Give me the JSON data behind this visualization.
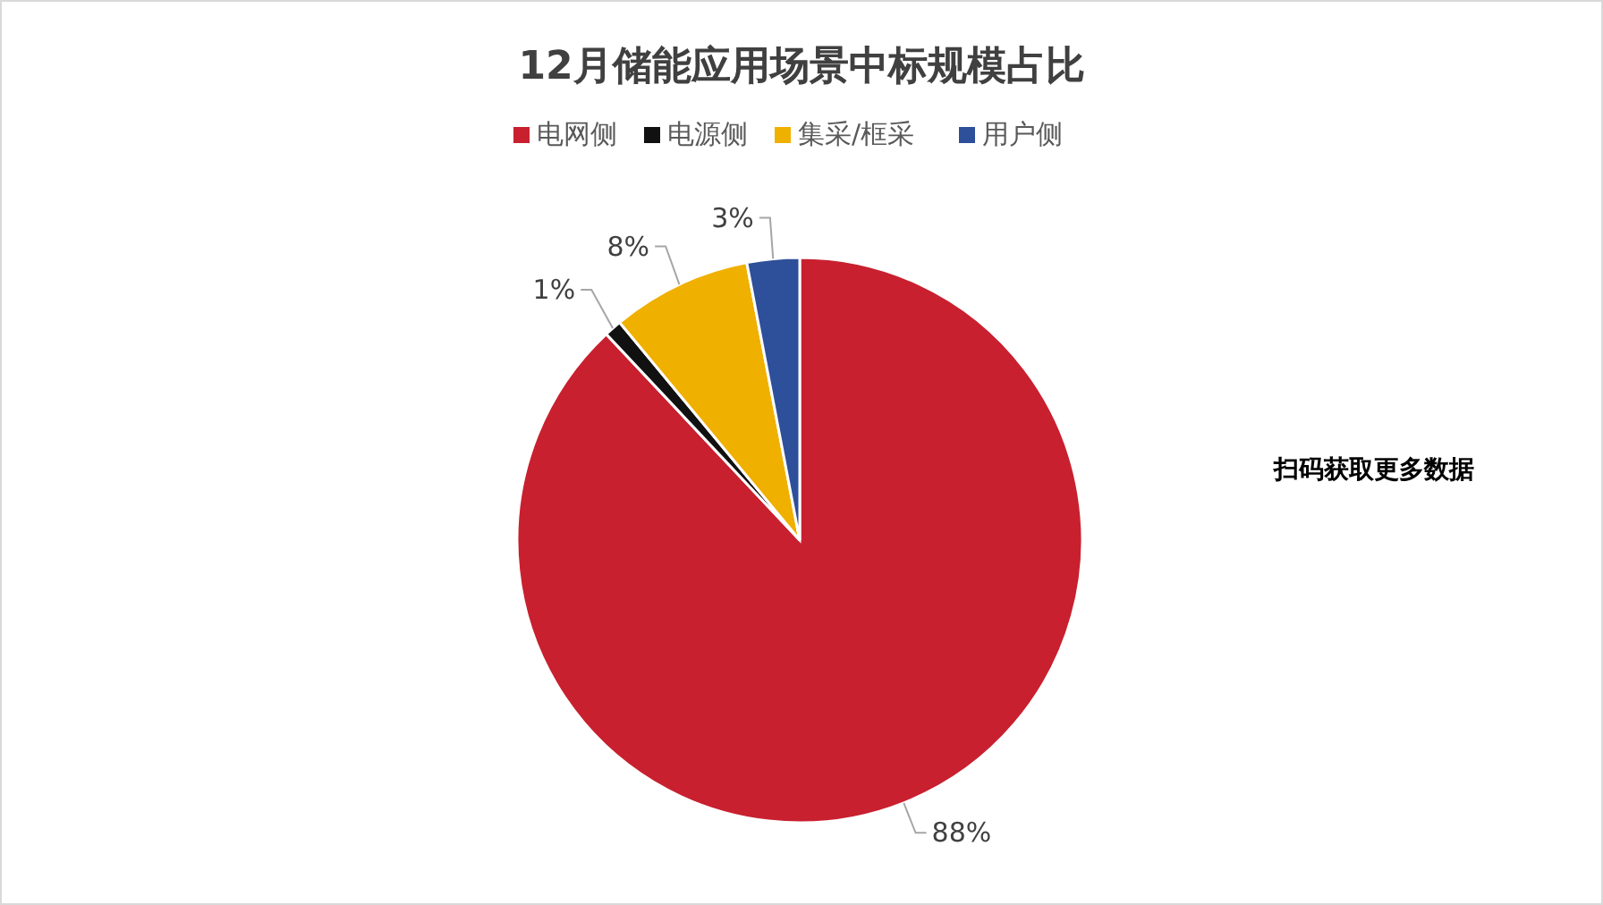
{
  "chart_data": {
    "type": "pie",
    "title": "12月储能应用场景中标规模占比",
    "categories": [
      "电网侧",
      "电源侧",
      "集采/框采",
      "用户侧"
    ],
    "values": [
      88,
      1,
      8,
      3
    ],
    "colors": [
      "#c8202f",
      "#111111",
      "#f0b000",
      "#2e4f9a"
    ],
    "value_labels": [
      "88%",
      "1%",
      "8%",
      "3%"
    ],
    "legend": "top",
    "annotations": [
      "扫码获取更多数据"
    ]
  }
}
